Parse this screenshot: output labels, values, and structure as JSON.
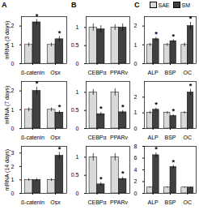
{
  "chart_data": [
    {
      "type": "bar",
      "title": "A",
      "ylabel": "mRNA (3 days)",
      "categories": [
        "β-catenin",
        "Osx"
      ],
      "series": [
        {
          "name": "SAE",
          "color": "#d9d9d9",
          "values": [
            1.0,
            1.0
          ],
          "errors": [
            0.1,
            0.1
          ],
          "annotations": [
            null,
            null
          ]
        },
        {
          "name": "SM",
          "color": "#404040",
          "values": [
            2.2,
            1.3
          ],
          "errors": [
            0.15,
            0.15
          ],
          "annotations": [
            "*",
            "*"
          ]
        }
      ],
      "ylim": [
        0,
        2.5
      ],
      "yticks": [
        0,
        1,
        2
      ]
    },
    {
      "type": "bar",
      "title": "B",
      "categories": [
        "CEBPα",
        "PPARγ"
      ],
      "series": [
        {
          "name": "SAE",
          "color": "#d9d9d9",
          "values": [
            1.0,
            1.0
          ],
          "errors": [
            0.1,
            0.08
          ],
          "annotations": [
            null,
            null
          ]
        },
        {
          "name": "SM",
          "color": "#404040",
          "values": [
            0.95,
            1.0
          ],
          "errors": [
            0.1,
            0.1
          ],
          "annotations": [
            null,
            null
          ]
        }
      ],
      "ylim": [
        0,
        1.3
      ],
      "yticks": [
        0,
        0.5,
        1
      ]
    },
    {
      "type": "bar",
      "title": "C",
      "legend": "top",
      "categories": [
        "ALP",
        "BSP",
        "OC"
      ],
      "series": [
        {
          "name": "SAE",
          "color": "#d9d9d9",
          "values": [
            1.0,
            1.0,
            1.0
          ],
          "errors": [
            0.08,
            0.08,
            0.1
          ],
          "annotations": [
            null,
            null,
            null
          ]
        },
        {
          "name": "SM",
          "color": "#404040",
          "values": [
            1.3,
            1.2,
            2.0
          ],
          "errors": [
            0.1,
            0.08,
            0.2
          ],
          "annotations": [
            "*",
            "*",
            "*"
          ]
        }
      ],
      "ylim": [
        0,
        2.5
      ],
      "yticks": [
        0,
        1,
        2
      ]
    },
    {
      "type": "bar",
      "ylabel": "mRNA (7 days)",
      "categories": [
        "β-catenin",
        "Osx"
      ],
      "series": [
        {
          "name": "SAE",
          "color": "#d9d9d9",
          "values": [
            1.0,
            1.0
          ],
          "errors": [
            0.1,
            0.1
          ],
          "annotations": [
            null,
            null
          ]
        },
        {
          "name": "SM",
          "color": "#404040",
          "values": [
            2.0,
            0.85
          ],
          "errors": [
            0.2,
            0.1
          ],
          "annotations": [
            "*",
            "*"
          ]
        }
      ],
      "ylim": [
        0,
        2.5
      ],
      "yticks": [
        0,
        1,
        2
      ]
    },
    {
      "type": "bar",
      "categories": [
        "CEBPα",
        "PPARγ"
      ],
      "series": [
        {
          "name": "SAE",
          "color": "#d9d9d9",
          "values": [
            1.0,
            1.0
          ],
          "errors": [
            0.08,
            0.1
          ],
          "annotations": [
            null,
            null
          ]
        },
        {
          "name": "SM",
          "color": "#404040",
          "values": [
            0.4,
            0.45
          ],
          "errors": [
            0.05,
            0.05
          ],
          "annotations": [
            "*",
            "*"
          ]
        }
      ],
      "ylim": [
        0,
        1.3
      ],
      "yticks": [
        0,
        0.5,
        1
      ]
    },
    {
      "type": "bar",
      "categories": [
        "ALP",
        "BSP",
        "OC"
      ],
      "series": [
        {
          "name": "SAE",
          "color": "#d9d9d9",
          "values": [
            1.0,
            1.0,
            1.0
          ],
          "errors": [
            0.08,
            0.08,
            0.08
          ],
          "annotations": [
            null,
            null,
            null
          ]
        },
        {
          "name": "SM",
          "color": "#404040",
          "values": [
            1.2,
            0.8,
            2.3
          ],
          "errors": [
            0.1,
            0.08,
            0.2
          ],
          "annotations": [
            "*",
            "*",
            "*"
          ]
        }
      ],
      "ylim": [
        0,
        3
      ],
      "yticks": [
        0,
        1,
        2
      ]
    },
    {
      "type": "bar",
      "ylabel": "mRNA (14 days)",
      "categories": [
        "β-catenin",
        "Osx"
      ],
      "series": [
        {
          "name": "SAE",
          "color": "#d9d9d9",
          "values": [
            1.0,
            1.0
          ],
          "errors": [
            0.1,
            0.1
          ],
          "annotations": [
            null,
            null
          ]
        },
        {
          "name": "SM",
          "color": "#404040",
          "values": [
            1.0,
            2.8
          ],
          "errors": [
            0.1,
            0.25
          ],
          "annotations": [
            null,
            "*"
          ]
        }
      ],
      "ylim": [
        0,
        3.5
      ],
      "yticks": [
        0,
        1,
        2,
        3
      ]
    },
    {
      "type": "bar",
      "categories": [
        "CEBPα",
        "PPARγ"
      ],
      "series": [
        {
          "name": "SAE",
          "color": "#d9d9d9",
          "values": [
            1.0,
            1.0
          ],
          "errors": [
            0.1,
            0.1
          ],
          "annotations": [
            null,
            null
          ]
        },
        {
          "name": "SM",
          "color": "#404040",
          "values": [
            0.25,
            0.4
          ],
          "errors": [
            0.05,
            0.05
          ],
          "annotations": [
            "*",
            "*"
          ]
        }
      ],
      "ylim": [
        0,
        1.3
      ],
      "yticks": [
        0,
        0.5,
        1
      ]
    },
    {
      "type": "bar",
      "categories": [
        "ALP",
        "BSP",
        "OC"
      ],
      "series": [
        {
          "name": "SAE",
          "color": "#d9d9d9",
          "values": [
            1.0,
            1.0,
            1.0
          ],
          "errors": [
            0.1,
            0.1,
            0.1
          ],
          "annotations": [
            null,
            null,
            null
          ]
        },
        {
          "name": "SM",
          "color": "#404040",
          "values": [
            6.5,
            4.5,
            1.0
          ],
          "errors": [
            0.4,
            0.3,
            0.1
          ],
          "annotations": [
            "*",
            "*",
            null
          ]
        }
      ],
      "ylim": [
        0,
        8
      ],
      "yticks": [
        0,
        2,
        4,
        6,
        8
      ]
    }
  ]
}
